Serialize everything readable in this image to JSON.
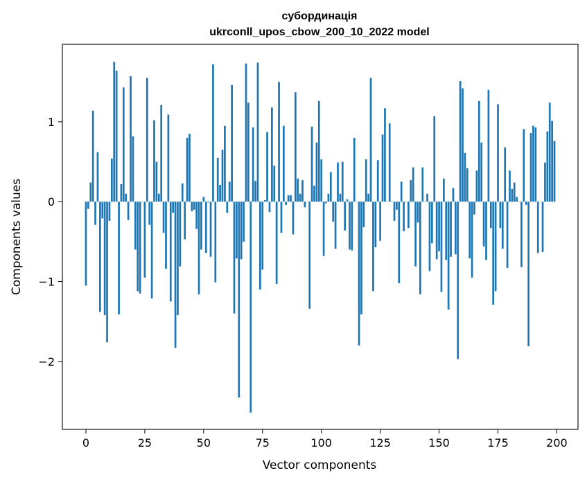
{
  "chart_data": {
    "type": "bar",
    "title_line1": "субординація",
    "title_line2": "ukrconll_upos_cbow_200_10_2022 model",
    "xlabel": "Vector components",
    "ylabel": "Components values",
    "xlim": [
      -10,
      209
    ],
    "ylim": [
      -2.85,
      1.97
    ],
    "x_ticks": [
      0,
      25,
      50,
      75,
      100,
      125,
      150,
      175,
      200
    ],
    "x_tick_labels": [
      "0",
      "25",
      "50",
      "75",
      "100",
      "125",
      "150",
      "175",
      "200"
    ],
    "y_ticks": [
      -2,
      -1,
      0,
      1
    ],
    "y_tick_labels": [
      "−2",
      "−1",
      "0",
      "1"
    ],
    "bar_color": "#1f77b4",
    "grid": false,
    "values": [
      -1.05,
      -0.09,
      0.24,
      1.14,
      -0.29,
      0.62,
      -1.38,
      -0.21,
      -1.42,
      -1.76,
      -0.24,
      0.54,
      1.75,
      1.64,
      -1.41,
      0.22,
      1.43,
      0.1,
      -0.23,
      1.57,
      0.82,
      -0.6,
      -1.12,
      -1.15,
      0.0,
      -0.95,
      1.55,
      -0.29,
      -1.21,
      1.02,
      0.5,
      0.1,
      1.21,
      -0.39,
      -0.84,
      1.09,
      -1.25,
      -0.14,
      -1.83,
      -1.42,
      -0.81,
      0.23,
      -0.47,
      0.8,
      0.85,
      -0.12,
      -0.1,
      -0.34,
      -1.16,
      -0.6,
      0.06,
      -0.64,
      -0.01,
      -0.69,
      1.72,
      -1.01,
      0.55,
      0.21,
      0.65,
      0.95,
      -0.14,
      0.25,
      1.46,
      -1.4,
      -0.71,
      -2.45,
      -0.72,
      -0.5,
      1.73,
      1.24,
      -2.64,
      0.93,
      0.26,
      1.74,
      -1.1,
      -0.85,
      0.02,
      0.87,
      -0.13,
      1.18,
      0.45,
      -1.03,
      1.5,
      -0.39,
      0.95,
      -0.04,
      0.08,
      0.08,
      -0.41,
      1.37,
      0.29,
      0.1,
      0.27,
      -0.07,
      0.0,
      -1.34,
      0.94,
      0.2,
      0.74,
      1.26,
      0.53,
      -0.68,
      -0.02,
      0.1,
      0.37,
      -0.25,
      -0.59,
      0.49,
      0.1,
      0.5,
      -0.36,
      0.03,
      -0.6,
      -0.61,
      0.8,
      0.0,
      -1.8,
      -1.41,
      -0.32,
      0.53,
      0.1,
      1.55,
      -1.12,
      -0.57,
      0.52,
      -0.49,
      0.84,
      1.17,
      0.0,
      0.98,
      0.0,
      -0.24,
      -0.1,
      -1.02,
      0.25,
      -0.37,
      0.0,
      -0.33,
      0.27,
      0.43,
      -0.81,
      -0.26,
      -1.16,
      0.43,
      0.0,
      0.1,
      -0.87,
      -0.52,
      1.07,
      -0.72,
      -0.62,
      -1.13,
      0.29,
      -0.73,
      -1.35,
      -0.69,
      0.17,
      -0.66,
      -1.97,
      1.51,
      1.42,
      0.61,
      0.42,
      -0.71,
      -0.95,
      -0.16,
      0.39,
      1.26,
      0.74,
      -0.56,
      -0.73,
      1.4,
      -0.33,
      -1.29,
      -1.12,
      1.22,
      -0.33,
      -0.59,
      0.68,
      -0.83,
      0.39,
      0.16,
      0.24,
      0.06,
      0.0,
      -0.82,
      0.91,
      -0.04,
      -1.81,
      0.86,
      0.95,
      0.93,
      -0.64,
      0.0,
      -0.63,
      0.49,
      0.88,
      1.24,
      1.01,
      0.76
    ]
  }
}
